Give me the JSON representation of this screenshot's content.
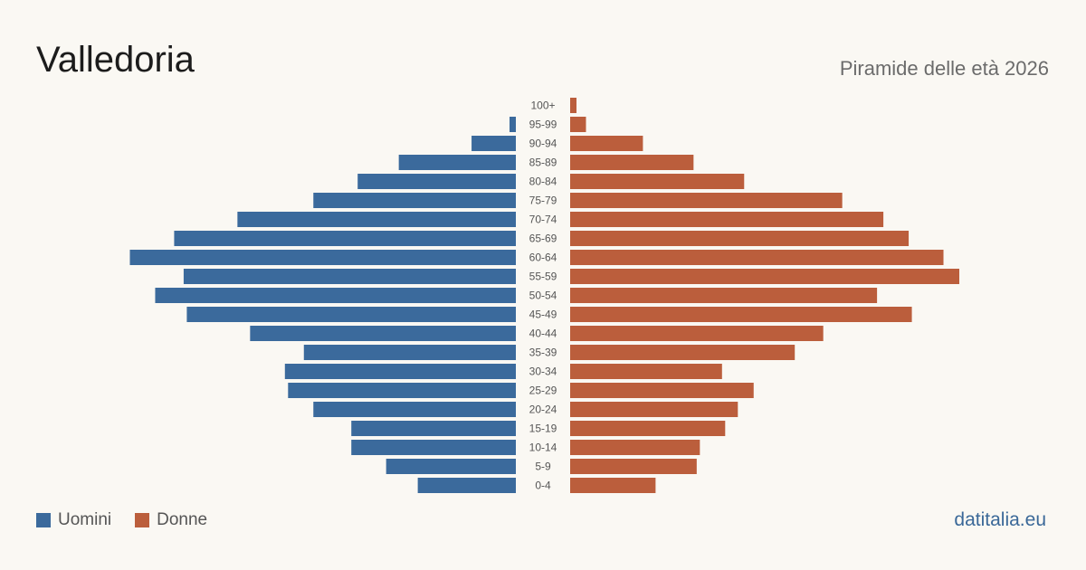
{
  "header": {
    "title": "Valledoria",
    "subtitle": "Piramide delle età 2026"
  },
  "footer": {
    "brand": "datitalia.eu"
  },
  "colors": {
    "men": "#3b6a9c",
    "women": "#bb5e3c",
    "background": "#faf8f3"
  },
  "chart_data": {
    "type": "bar",
    "orientation": "horizontal-pyramid",
    "title": "Piramide delle età 2026",
    "categories": [
      "100+",
      "95-99",
      "90-94",
      "85-89",
      "80-84",
      "75-79",
      "70-74",
      "65-69",
      "60-64",
      "55-59",
      "50-54",
      "45-49",
      "40-44",
      "35-39",
      "30-34",
      "25-29",
      "20-24",
      "15-19",
      "10-14",
      "5-9",
      "0-4"
    ],
    "series": [
      {
        "name": "Uomini",
        "color": "#3b6a9c",
        "values": [
          0,
          2,
          14,
          37,
          50,
          64,
          88,
          108,
          122,
          105,
          114,
          104,
          84,
          67,
          73,
          72,
          64,
          52,
          52,
          41,
          31
        ]
      },
      {
        "name": "Donne",
        "color": "#bb5e3c",
        "values": [
          2,
          5,
          23,
          39,
          55,
          86,
          99,
          107,
          118,
          123,
          97,
          108,
          80,
          71,
          48,
          58,
          53,
          49,
          41,
          40,
          27
        ]
      }
    ],
    "xlim": [
      0,
      123
    ],
    "grid": false,
    "legend": "bottom-left"
  }
}
